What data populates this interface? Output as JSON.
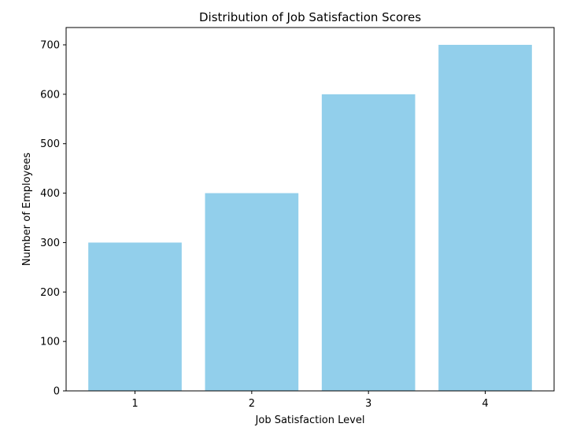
{
  "chart_data": {
    "type": "bar",
    "title": "Distribution of Job Satisfaction Scores",
    "xlabel": "Job Satisfaction Level",
    "ylabel": "Number of Employees",
    "categories": [
      "1",
      "2",
      "3",
      "4"
    ],
    "values": [
      300,
      400,
      600,
      700
    ],
    "ylim": [
      0,
      735
    ],
    "yticks": [
      0,
      100,
      200,
      300,
      400,
      500,
      600,
      700
    ],
    "bar_color": "#92cfeb",
    "grid": false,
    "legend": "none"
  }
}
